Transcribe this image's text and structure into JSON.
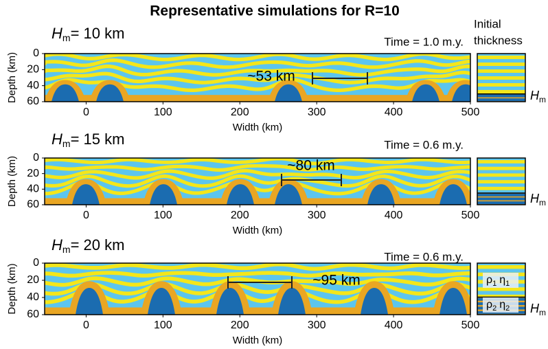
{
  "title": "Representative simulations for R=10",
  "side_label": [
    "Initial",
    "thickness"
  ],
  "chart_data": [
    {
      "type": "image",
      "panel_label": {
        "symbol": "H",
        "subscript": "m",
        "text": "= 10 km"
      },
      "time": "Time = 1.0 m.y.",
      "annotation": "~53 km",
      "xlabel": "Width (km)",
      "ylabel": "Depth (km)",
      "xlim": [
        -54,
        500
      ],
      "ylim": [
        60,
        0
      ],
      "xticks": [
        0,
        100,
        200,
        300,
        400,
        500
      ],
      "yticks": [
        0,
        20,
        40,
        60
      ],
      "side": {
        "symbol": "H",
        "subscript": "m"
      }
    },
    {
      "type": "image",
      "panel_label": {
        "symbol": "H",
        "subscript": "m",
        "text": "= 15 km"
      },
      "time": "Time = 0.6 m.y.",
      "annotation": "~80 km",
      "xlabel": "Width (km)",
      "ylabel": "Depth (km)",
      "xlim": [
        -54,
        500
      ],
      "ylim": [
        60,
        0
      ],
      "xticks": [
        0,
        100,
        200,
        300,
        400,
        500
      ],
      "yticks": [
        0,
        20,
        40,
        60
      ],
      "side": {
        "symbol": "H",
        "subscript": "m"
      }
    },
    {
      "type": "image",
      "panel_label": {
        "symbol": "H",
        "subscript": "m",
        "text": "= 20 km"
      },
      "time": "Time = 0.6 m.y.",
      "annotation": "~95 km",
      "xlabel": "Width (km)",
      "ylabel": "Depth (km)",
      "xlim": [
        -54,
        500
      ],
      "ylim": [
        60,
        0
      ],
      "xticks": [
        0,
        100,
        200,
        300,
        400,
        500
      ],
      "yticks": [
        0,
        20,
        40,
        60
      ],
      "side": {
        "symbol": "H",
        "subscript": "m"
      },
      "layers": [
        {
          "density": "ρ",
          "viscosity": "η",
          "index": "1"
        },
        {
          "density": "ρ",
          "viscosity": "η",
          "index": "2"
        }
      ]
    }
  ]
}
